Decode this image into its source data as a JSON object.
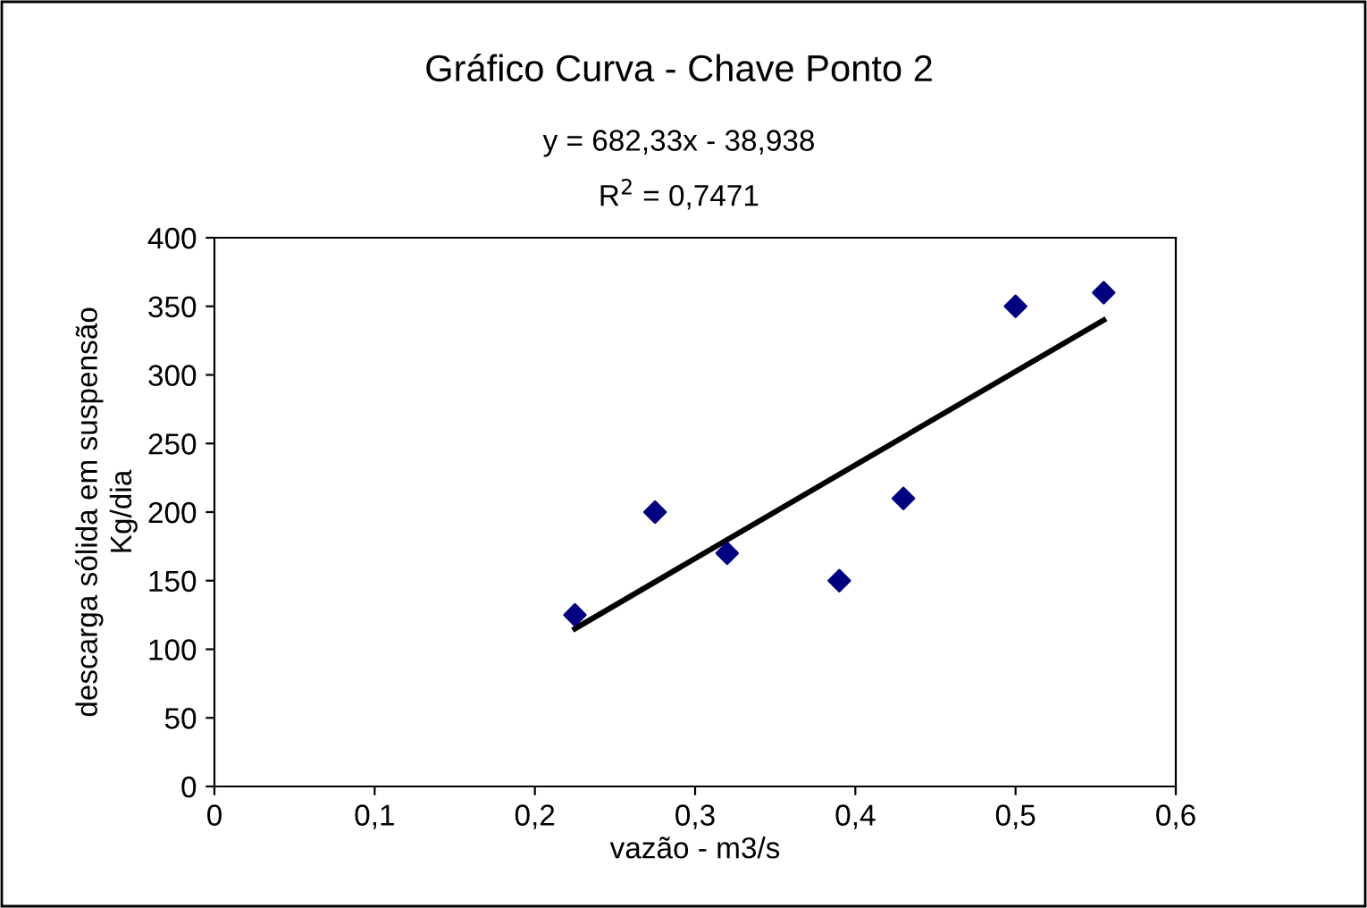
{
  "chart_data": {
    "type": "scatter",
    "title": "Gráfico Curva - Chave Ponto 2",
    "annotations": [
      "y = 682,33x - 38,938",
      "R$^{2}$ = 0,7471"
    ],
    "xlabel": "vazão - m3/s",
    "ylabel": "descarga sólida em suspensão\nKg/dia",
    "series": [
      {
        "color": "#000080",
        "marker": "diamond",
        "x": [
          0.225,
          0.275,
          0.32,
          0.39,
          0.43,
          0.5,
          0.555
        ],
        "values": [
          125,
          200,
          170,
          150,
          210,
          350,
          360
        ]
      },
      {
        "type": "line",
        "color": "#000000",
        "marker": "none",
        "x": [
          0.225,
          0.555
        ],
        "values": [
          115,
          340
        ]
      }
    ],
    "xlim": [
      0,
      0.6
    ],
    "xticks": [
      0,
      {
        "value": 0.1,
        "label": "0,1"
      },
      {
        "value": 0.2,
        "label": "0,2"
      },
      {
        "value": 0.3,
        "label": "0,3"
      },
      {
        "value": 0.4,
        "label": "0,4"
      },
      {
        "value": 0.5,
        "label": "0,5"
      },
      {
        "value": 0.6,
        "label": "0,6"
      }
    ],
    "ylim": [
      0,
      400
    ],
    "yticks": [
      0,
      50,
      100,
      150,
      200,
      250,
      300,
      350,
      400
    ],
    "grid": false,
    "legend": false
  }
}
